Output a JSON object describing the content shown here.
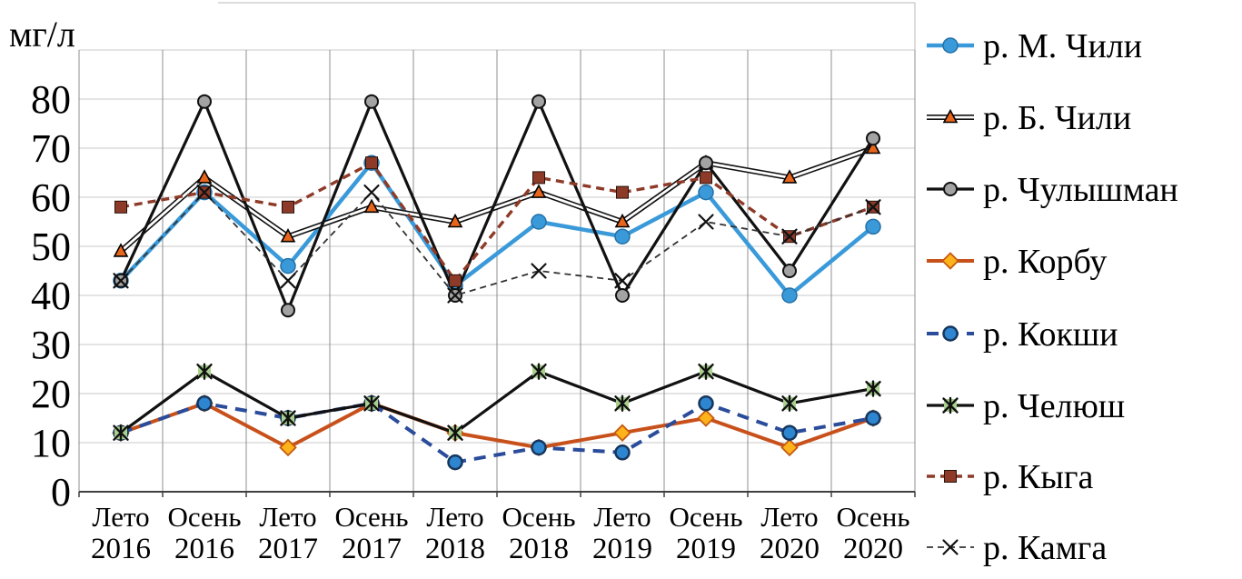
{
  "page": {
    "background": "#ffffff"
  },
  "chart_data": {
    "type": "line",
    "title": "",
    "ylabel": "мг/л",
    "xlabel": "",
    "ylim": [
      0,
      90
    ],
    "yticks": [
      0,
      10,
      20,
      30,
      40,
      50,
      60,
      70,
      80
    ],
    "grid": true,
    "legend_position": "right",
    "categories": [
      {
        "season": "Лето",
        "year": "2016"
      },
      {
        "season": "Осень",
        "year": "2016"
      },
      {
        "season": "Лето",
        "year": "2017"
      },
      {
        "season": "Осень",
        "year": "2017"
      },
      {
        "season": "Лето",
        "year": "2018"
      },
      {
        "season": "Осень",
        "year": "2018"
      },
      {
        "season": "Лето",
        "year": "2019"
      },
      {
        "season": "Осень",
        "year": "2019"
      },
      {
        "season": "Лето",
        "year": "2020"
      },
      {
        "season": "Осень",
        "year": "2020"
      }
    ],
    "series": [
      {
        "name": "р. М. Чили",
        "slug": "m-chili",
        "color": "#3A9AD9",
        "line": "solid",
        "width": 4.5,
        "marker": "circle",
        "marker_fill": "#3A9AD9",
        "marker_edge": "#2470A6",
        "marker_r": 8,
        "values": [
          43,
          61,
          46,
          67,
          42,
          55,
          52,
          61,
          40,
          54
        ]
      },
      {
        "name": "р. Б. Чили",
        "slug": "b-chili",
        "color": "#111111",
        "line": "double",
        "width": 6,
        "marker": "triangle",
        "marker_fill": "#E8661C",
        "marker_edge": "#000000",
        "values": [
          49,
          64,
          52,
          58,
          55,
          61,
          55,
          67,
          64,
          70
        ]
      },
      {
        "name": "р. Чулышман",
        "slug": "chulyshman",
        "color": "#111111",
        "line": "solid",
        "width": 3.2,
        "marker": "circle",
        "marker_fill": "#A3A3A3",
        "marker_edge": "#111111",
        "marker_r": 7,
        "marker_ew": 2,
        "values": [
          43,
          79.5,
          37,
          79.5,
          40,
          79.5,
          40,
          67,
          45,
          72
        ]
      },
      {
        "name": "р. Корбу",
        "slug": "korbu",
        "color": "#C8511B",
        "line": "solid",
        "width": 4,
        "marker": "diamond",
        "marker_fill": "#FFB31A",
        "marker_edge": "#C45911",
        "values": [
          12,
          18,
          9,
          18,
          12,
          9,
          12,
          15,
          9,
          15
        ]
      },
      {
        "name": "р. Кокши",
        "slug": "kokshi",
        "color": "#2A4C9B",
        "line": "dashed",
        "dash": "13 9",
        "width": 4,
        "marker": "circle",
        "marker_fill": "#2E86D0",
        "marker_edge": "#17365D",
        "marker_r": 7.5,
        "marker_ew": 2.5,
        "values": [
          12,
          18,
          15,
          18,
          6,
          9,
          8,
          18,
          12,
          15
        ]
      },
      {
        "name": "р. Челюш",
        "slug": "chelyush",
        "color": "#111111",
        "line": "solid",
        "width": 3.2,
        "marker": "zh",
        "marker_fill": "#A9D08E",
        "marker_edge": "#111111",
        "values": [
          12,
          24.5,
          15,
          18,
          12,
          24.5,
          18,
          24.5,
          18,
          21
        ]
      },
      {
        "name": "р. Кыга",
        "slug": "kyga",
        "color": "#8E3A28",
        "line": "dashed",
        "dash": "9 6",
        "width": 3.4,
        "marker": "square",
        "marker_fill": "#8E3A28",
        "marker_edge": "#26120B",
        "values": [
          58,
          61,
          58,
          67,
          43,
          64,
          61,
          64,
          52,
          58
        ]
      },
      {
        "name": "р. Камга",
        "slug": "kamga",
        "color": "#333333",
        "line": "dashed",
        "dash": "7 5",
        "width": 1.8,
        "marker": "x",
        "marker_fill": "none",
        "marker_edge": "#111111",
        "values": [
          43,
          61,
          43,
          61,
          40,
          45,
          43,
          55,
          52,
          58
        ]
      }
    ]
  },
  "grid_colors": {
    "h_gridline": "#c8c8c8",
    "v_gridline": "#8f8f8f",
    "axis_line": "#404040",
    "border": "#b8b8b8"
  }
}
